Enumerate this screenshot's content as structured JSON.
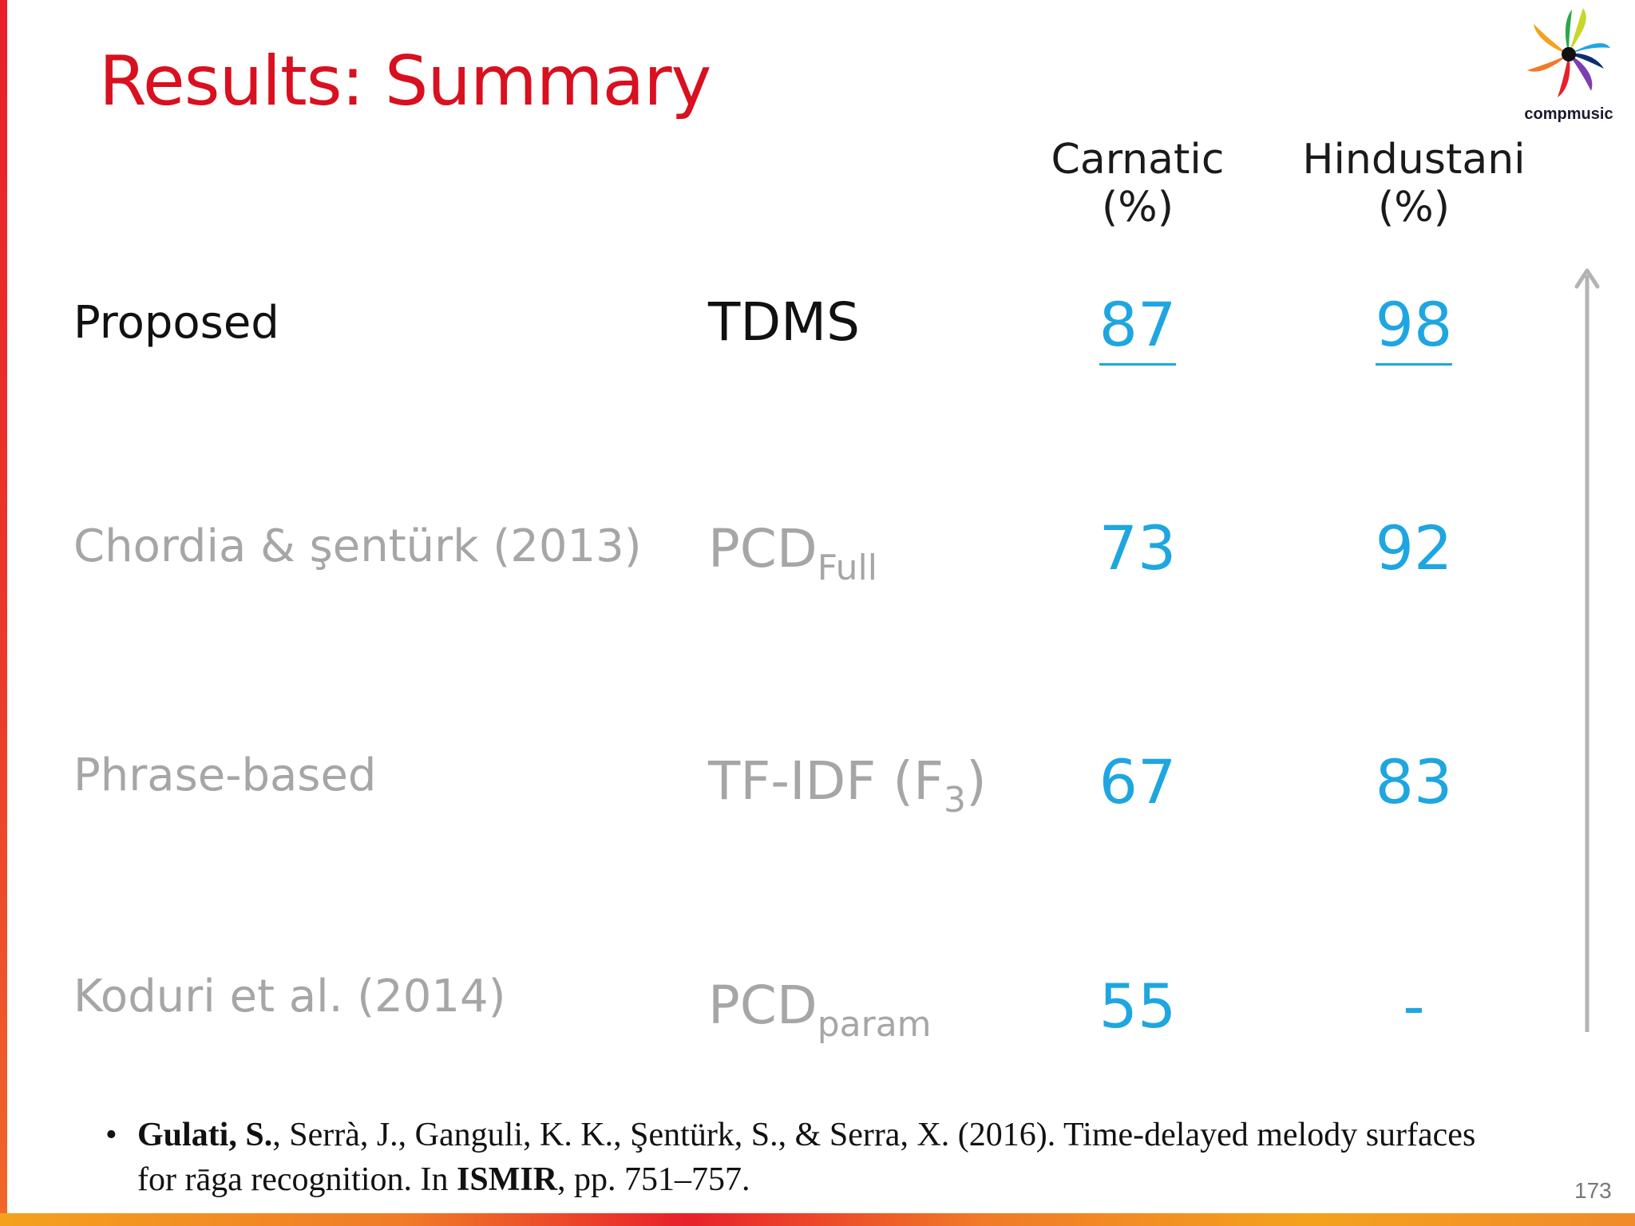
{
  "slide": {
    "title": "Results: Summary",
    "logo_text": "compmusic",
    "page_number": "173"
  },
  "columns": {
    "carnatic": {
      "line1": "Carnatic",
      "line2": "(%)"
    },
    "hindustani": {
      "line1": "Hindustani",
      "line2": "(%)"
    }
  },
  "rows": [
    {
      "method": "Proposed",
      "feature": "TDMS",
      "feature_sub": "",
      "feature_suffix": "",
      "carnatic": "87",
      "hindustani": "98"
    },
    {
      "method": "Chordia & şentürk (2013)",
      "feature": "PCD",
      "feature_sub": "Full",
      "feature_suffix": "",
      "carnatic": "73",
      "hindustani": "92"
    },
    {
      "method": "Phrase-based",
      "feature": "TF-IDF (F",
      "feature_sub": "3",
      "feature_suffix": ")",
      "carnatic": "67",
      "hindustani": "83"
    },
    {
      "method": "Koduri et al. (2014)",
      "feature": "PCD",
      "feature_sub": "param",
      "feature_suffix": "",
      "carnatic": "55",
      "hindustani": "-"
    }
  ],
  "citation": {
    "bullet": "•",
    "author_bold": "Gulati, S.",
    "text_middle": ", Serrà, J., Ganguli, K. K., Şentürk, S., & Serra, X. (2016). Time-delayed melody surfaces for rāga recognition. In ",
    "venue_bold": "ISMIR",
    "text_end": ", pp. 751–757."
  },
  "colors": {
    "title": "#d8101f",
    "value": "#1ea6e0",
    "highlight_text": "#111111",
    "muted_text": "#a6a6a6",
    "arrow": "#b3b3b3"
  }
}
